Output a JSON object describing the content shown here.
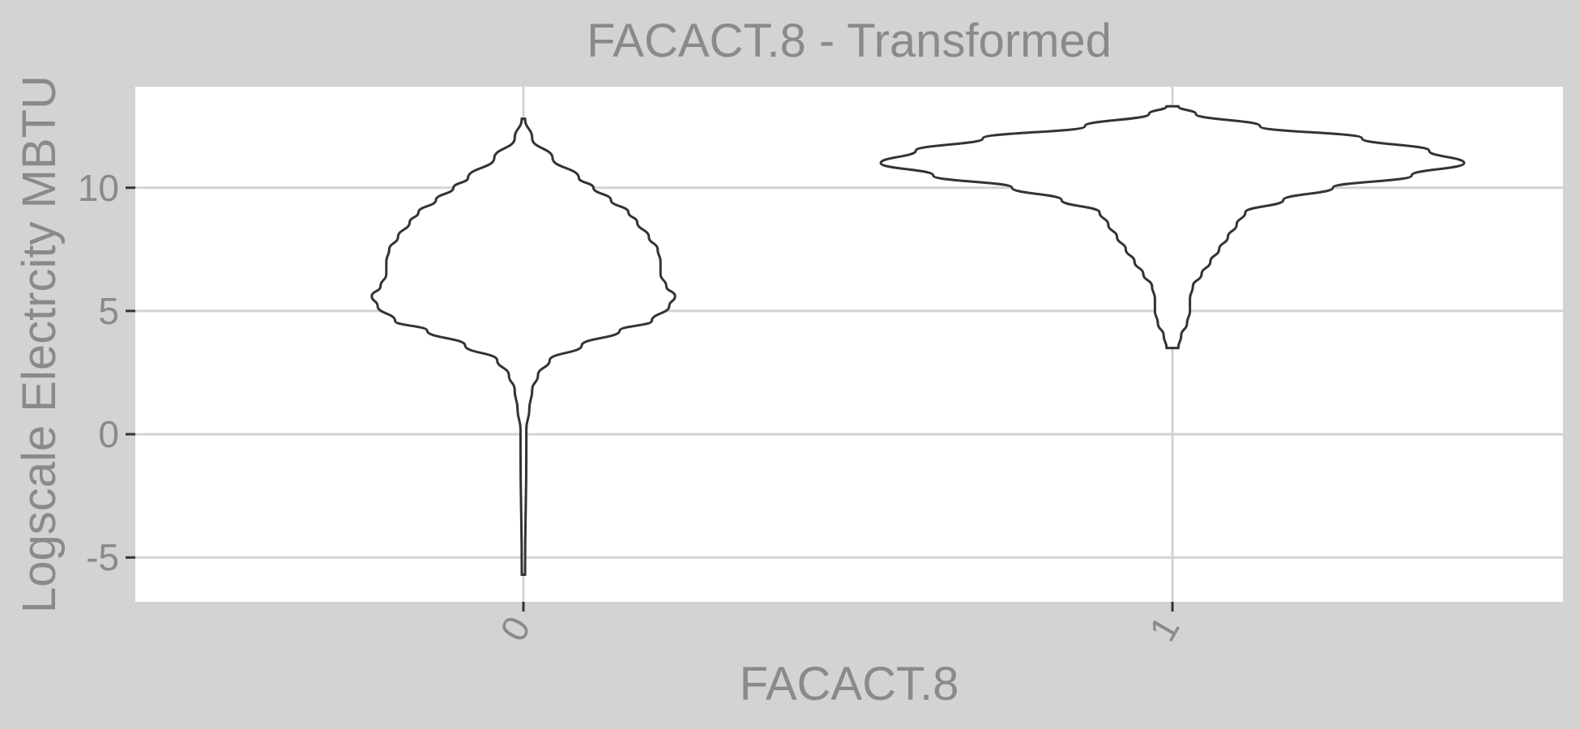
{
  "chart_data": {
    "type": "violin",
    "title": "FACACT.8 - Transformed",
    "xlabel": "FACACT.8",
    "ylabel": "Logscale Electrcity MBTU",
    "categories": [
      "0",
      "1"
    ],
    "yticks": [
      -5,
      0,
      5,
      10
    ],
    "ylim": [
      -6.8,
      14.1
    ],
    "grid": true,
    "colors": {
      "background": "#d3d3d3",
      "panel": "#ffffff",
      "grid": "#d3d3d3",
      "outline": "#333333",
      "text": "#8a8a8a"
    },
    "violins": [
      {
        "category": "0",
        "y_min": -5.7,
        "y_max": 12.8,
        "density_profile": [
          [
            12.8,
            0.0
          ],
          [
            12.0,
            0.03
          ],
          [
            11.2,
            0.1
          ],
          [
            10.4,
            0.19
          ],
          [
            10.0,
            0.24
          ],
          [
            9.5,
            0.3
          ],
          [
            9.0,
            0.36
          ],
          [
            8.6,
            0.39
          ],
          [
            8.0,
            0.43
          ],
          [
            7.5,
            0.46
          ],
          [
            7.0,
            0.47
          ],
          [
            6.5,
            0.47
          ],
          [
            6.0,
            0.49
          ],
          [
            5.6,
            0.52
          ],
          [
            5.2,
            0.5
          ],
          [
            4.6,
            0.44
          ],
          [
            4.2,
            0.33
          ],
          [
            3.6,
            0.2
          ],
          [
            3.0,
            0.09
          ],
          [
            2.4,
            0.05
          ],
          [
            1.8,
            0.03
          ],
          [
            1.0,
            0.02
          ],
          [
            0.2,
            0.01
          ],
          [
            -0.5,
            0.01
          ],
          [
            -5.7,
            0.005
          ]
        ]
      },
      {
        "category": "1",
        "y_min": 3.5,
        "y_max": 13.3,
        "density_profile": [
          [
            13.3,
            0.02
          ],
          [
            13.0,
            0.08
          ],
          [
            12.5,
            0.3
          ],
          [
            12.0,
            0.65
          ],
          [
            11.5,
            0.88
          ],
          [
            11.0,
            1.0
          ],
          [
            10.5,
            0.82
          ],
          [
            10.0,
            0.55
          ],
          [
            9.5,
            0.38
          ],
          [
            9.0,
            0.25
          ],
          [
            8.5,
            0.22
          ],
          [
            8.0,
            0.19
          ],
          [
            7.5,
            0.16
          ],
          [
            7.0,
            0.13
          ],
          [
            6.5,
            0.1
          ],
          [
            6.0,
            0.07
          ],
          [
            5.5,
            0.06
          ],
          [
            5.0,
            0.06
          ],
          [
            4.5,
            0.05
          ],
          [
            4.0,
            0.03
          ],
          [
            3.5,
            0.02
          ]
        ]
      }
    ]
  }
}
